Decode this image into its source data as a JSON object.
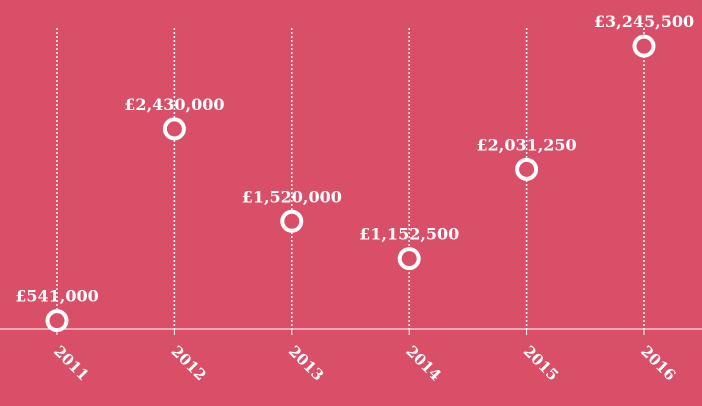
{
  "chart_data": {
    "type": "scatter",
    "title": "",
    "xlabel": "",
    "ylabel": "",
    "grid": false,
    "categories": [
      "2011",
      "2012",
      "2013",
      "2014",
      "2015",
      "2016"
    ],
    "values": [
      541000,
      2430000,
      1520000,
      1152500,
      2031250,
      3245500
    ],
    "value_labels": [
      "£541,000",
      "£2,430,000",
      "£1,520,000",
      "£1,152,500",
      "£2,031,250",
      "£3,245,500"
    ],
    "ylim": [
      -300000,
      3700000
    ]
  },
  "colors": {
    "background": "#d94f68",
    "foreground": "#ffffff"
  }
}
